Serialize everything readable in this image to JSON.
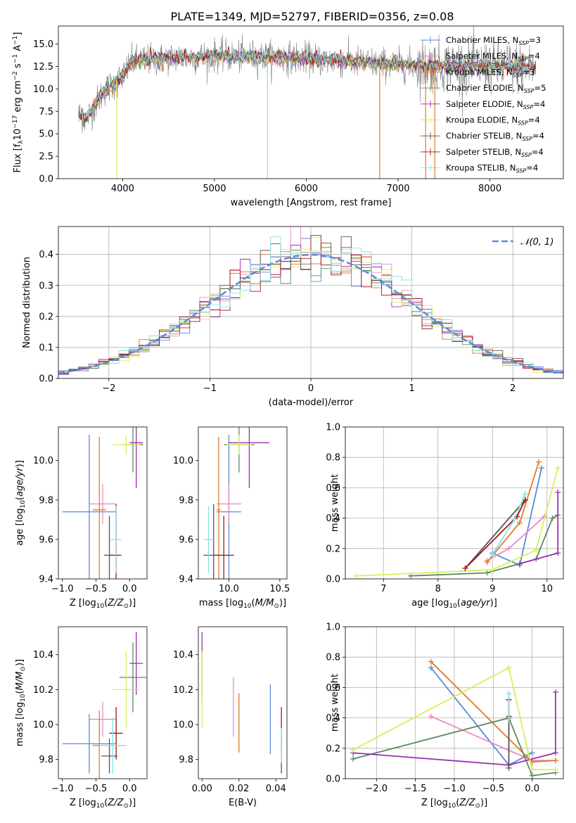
{
  "figure": {
    "title": "PLATE=1349, MJD=52797, FIBERID=0356, z=0.08",
    "colors": [
      "#5b8bd9",
      "#e98bbd",
      "#e07b2a",
      "#5b8a5b",
      "#9b30b0",
      "#d8ee5a",
      "#555555",
      "#a51414",
      "#88e0e6"
    ]
  },
  "chart_data": [
    {
      "id": "spectrum",
      "type": "line",
      "xlabel": "wavelength [Angstrom, rest frame]",
      "ylabel": "Flux [f_λ10^-17 erg cm^-2 s^-1 A^-1]",
      "xlim": [
        3300,
        8800
      ],
      "ylim": [
        0,
        17
      ],
      "xticks": [
        4000,
        5000,
        6000,
        7000,
        8000
      ],
      "yticks": [
        0.0,
        2.5,
        5.0,
        7.5,
        10.0,
        12.5,
        15.0
      ],
      "grid": false,
      "legend_position": "upper right",
      "legend": [
        {
          "label": "Chabrier MILES, N_SSP=3",
          "name": "Chabrier MILES",
          "n": "3",
          "color": "#5b8bd9"
        },
        {
          "label": "Salpeter MILES, N_SSP=4",
          "name": "Salpeter MILES",
          "n": "4",
          "color": "#e98bbd"
        },
        {
          "label": "Kroupa MILES, N_SSP=3",
          "name": "Kroupa MILES",
          "n": "3",
          "color": "#e07b2a"
        },
        {
          "label": "Chabrier ELODIE, N_SSP=5",
          "name": "Chabrier ELODIE",
          "n": "5",
          "color": "#5b8a5b"
        },
        {
          "label": "Salpeter ELODIE, N_SSP=4",
          "name": "Salpeter ELODIE",
          "n": "4",
          "color": "#9b30b0"
        },
        {
          "label": "Kroupa ELODIE, N_SSP=4",
          "name": "Kroupa ELODIE",
          "n": "4",
          "color": "#d8ee5a"
        },
        {
          "label": "Chabrier STELIB, N_SSP=4",
          "name": "Chabrier STELIB",
          "n": "4",
          "color": "#555555"
        },
        {
          "label": "Salpeter STELIB, N_SSP=4",
          "name": "Salpeter STELIB",
          "n": "4",
          "color": "#a51414"
        },
        {
          "label": "Kroupa STELIB, N_SSP=4",
          "name": "Kroupa STELIB",
          "n": "4",
          "color": "#88e0e6"
        }
      ],
      "continuum": {
        "x": [
          3520,
          3600,
          3700,
          3800,
          3900,
          4000,
          4100,
          4200,
          4400,
          4600,
          4800,
          5000,
          5200,
          5500,
          6000,
          6500,
          7000,
          7400,
          8000,
          8500
        ],
        "y": [
          7.2,
          6.6,
          8.2,
          9.8,
          10.5,
          11.4,
          13.0,
          13.2,
          13.3,
          13.5,
          13.5,
          13.7,
          13.6,
          13.6,
          13.4,
          13.0,
          12.7,
          12.6,
          12.5,
          12.4
        ]
      },
      "absorption_spikes": [
        3935,
        5577,
        6800,
        7300,
        7400
      ]
    },
    {
      "id": "residuals",
      "type": "histogram",
      "xlabel": "(data-model)/error",
      "ylabel": "Normed distribution",
      "xlim": [
        -2.5,
        2.5
      ],
      "ylim": [
        0,
        0.49
      ],
      "xticks": [
        -2,
        -1,
        0,
        1,
        2
      ],
      "yticks": [
        0.0,
        0.1,
        0.2,
        0.3,
        0.4
      ],
      "grid": true,
      "bin_width": 0.1,
      "bin_start": -2.5,
      "legend_position": "upper right",
      "reference_curve": {
        "label": "N(0,1)",
        "label_script": "𝒩(0, 1)",
        "mean": 0,
        "sigma": 1,
        "style": "dashed",
        "color": "#5b8bd9"
      }
    },
    {
      "id": "age-metallicity",
      "type": "errorbar",
      "xlabel": "Z [log10(Z/Z⊙)]",
      "ylabel": "age [log10(age/yr)]",
      "xlim": [
        -1.06,
        0.26
      ],
      "ylim": [
        9.4,
        10.17
      ],
      "xticks": [
        -1.0,
        -0.5,
        0.0
      ],
      "yticks": [
        9.4,
        9.6,
        9.8,
        10.0
      ],
      "points": [
        {
          "x": -0.6,
          "y": 9.74,
          "xerr": 0.4,
          "yerr": 0.39,
          "color": "#5b8bd9"
        },
        {
          "x": -0.4,
          "y": 9.78,
          "xerr": 0.2,
          "yerr": 0.1,
          "color": "#e98bbd"
        },
        {
          "x": -0.45,
          "y": 9.75,
          "xerr": 0.1,
          "yerr": 0.37,
          "color": "#e07b2a"
        },
        {
          "x": 0.05,
          "y": 10.08,
          "xerr": 0.15,
          "yerr": 0.14,
          "color": "#5b8a5b"
        },
        {
          "x": 0.1,
          "y": 10.09,
          "xerr": 0.1,
          "yerr": 0.23,
          "color": "#9b30b0"
        },
        {
          "x": -0.05,
          "y": 10.08,
          "xerr": 0.2,
          "yerr": 0.05,
          "color": "#d8ee5a"
        },
        {
          "x": -0.3,
          "y": 9.52,
          "xerr": 0.08,
          "yerr": 0.2,
          "color": "#555555"
        },
        {
          "x": -0.2,
          "y": 9.52,
          "xerr": 0.08,
          "yerr": 0.26,
          "color": "#a51414"
        },
        {
          "x": -0.2,
          "y": 9.6,
          "xerr": 0.08,
          "yerr": 0.17,
          "color": "#88e0e6"
        }
      ]
    },
    {
      "id": "age-mass",
      "type": "errorbar",
      "xlabel": "mass [log10(M/M⊙)]",
      "ylabel": "",
      "xlim": [
        9.7,
        10.57
      ],
      "ylim": [
        9.4,
        10.17
      ],
      "xticks": [
        10.0,
        10.5
      ],
      "yticks": [
        9.4,
        9.6,
        9.8,
        10.0
      ],
      "points": [
        {
          "x": 10.0,
          "y": 9.74,
          "xerr": 0.12,
          "yerr": 0.39,
          "color": "#5b8bd9"
        },
        {
          "x": 10.0,
          "y": 9.78,
          "xerr": 0.12,
          "yerr": 0.1,
          "color": "#e98bbd"
        },
        {
          "x": 9.9,
          "y": 9.75,
          "xerr": 0.02,
          "yerr": 0.37,
          "color": "#e07b2a"
        },
        {
          "x": 10.1,
          "y": 10.08,
          "xerr": 0.15,
          "yerr": 0.14,
          "color": "#5b8a5b"
        },
        {
          "x": 10.2,
          "y": 10.09,
          "xerr": 0.2,
          "yerr": 0.23,
          "color": "#9b30b0"
        },
        {
          "x": 10.1,
          "y": 10.08,
          "xerr": 0.12,
          "yerr": 0.05,
          "color": "#d8ee5a"
        },
        {
          "x": 9.85,
          "y": 9.52,
          "xerr": 0.1,
          "yerr": 0.26,
          "color": "#555555"
        },
        {
          "x": 9.95,
          "y": 9.52,
          "xerr": 0.1,
          "yerr": 0.2,
          "color": "#a51414"
        },
        {
          "x": 9.8,
          "y": 9.6,
          "xerr": 0.05,
          "yerr": 0.17,
          "color": "#88e0e6"
        }
      ]
    },
    {
      "id": "mass-weight-age",
      "type": "line",
      "xlabel": "age [log10(age/yr)]",
      "ylabel": "mass weight",
      "xlim": [
        6.3,
        10.3
      ],
      "ylim": [
        0,
        1
      ],
      "xticks": [
        7,
        8,
        9,
        10
      ],
      "yticks": [
        0.0,
        0.2,
        0.4,
        0.6,
        0.8,
        1.0
      ],
      "grid": true,
      "series": [
        {
          "color": "#5b8bd9",
          "x": [
            9.0,
            9.5,
            9.9
          ],
          "y": [
            0.17,
            0.09,
            0.73
          ]
        },
        {
          "color": "#e98bbd",
          "x": [
            8.9,
            9.3,
            9.95
          ],
          "y": [
            0.12,
            0.2,
            0.41
          ]
        },
        {
          "color": "#e07b2a",
          "x": [
            8.9,
            9.5,
            9.85
          ],
          "y": [
            0.11,
            0.37,
            0.77
          ]
        },
        {
          "color": "#5b8a5b",
          "x": [
            7.5,
            8.9,
            9.8,
            10.1,
            10.2
          ],
          "y": [
            0.02,
            0.04,
            0.13,
            0.4,
            0.42
          ]
        },
        {
          "color": "#9b30b0",
          "x": [
            9.5,
            10.2,
            10.2
          ],
          "y": [
            0.1,
            0.17,
            0.57
          ]
        },
        {
          "color": "#d8ee5a",
          "x": [
            6.5,
            9.0,
            9.8,
            10.2
          ],
          "y": [
            0.02,
            0.06,
            0.19,
            0.73
          ]
        },
        {
          "color": "#555555",
          "x": [
            8.5,
            9.6
          ],
          "y": [
            0.07,
            0.52
          ]
        },
        {
          "color": "#a51414",
          "x": [
            8.5,
            9.45,
            9.6
          ],
          "y": [
            0.07,
            0.41,
            0.52
          ]
        },
        {
          "color": "#88e0e6",
          "x": [
            9.0,
            9.4,
            9.6
          ],
          "y": [
            0.16,
            0.39,
            0.56
          ]
        }
      ]
    },
    {
      "id": "mass-metallicity",
      "type": "errorbar",
      "xlabel": "Z [log10(Z/Z⊙)]",
      "ylabel": "mass [log10(M/M⊙)]",
      "xlim": [
        -1.06,
        0.26
      ],
      "ylim": [
        9.69,
        10.56
      ],
      "xticks": [
        -1.0,
        -0.5,
        0.0
      ],
      "yticks": [
        9.8,
        10.0,
        10.2,
        10.4
      ],
      "points": [
        {
          "x": -0.6,
          "y": 9.89,
          "xerr": 0.4,
          "yerr": 0.17,
          "color": "#5b8bd9"
        },
        {
          "x": -0.4,
          "y": 10.03,
          "xerr": 0.2,
          "yerr": 0.1,
          "color": "#e98bbd"
        },
        {
          "x": -0.45,
          "y": 9.88,
          "xerr": 0.1,
          "yerr": 0.2,
          "color": "#e07b2a"
        },
        {
          "x": 0.05,
          "y": 10.27,
          "xerr": 0.2,
          "yerr": 0.2,
          "color": "#5b8a5b"
        },
        {
          "x": 0.1,
          "y": 10.35,
          "xerr": 0.1,
          "yerr": 0.18,
          "color": "#9b30b0"
        },
        {
          "x": -0.05,
          "y": 10.2,
          "xerr": 0.2,
          "yerr": 0.22,
          "color": "#d8ee5a"
        },
        {
          "x": -0.3,
          "y": 9.82,
          "xerr": 0.12,
          "yerr": 0.1,
          "color": "#555555"
        },
        {
          "x": -0.2,
          "y": 9.95,
          "xerr": 0.1,
          "yerr": 0.15,
          "color": "#a51414"
        },
        {
          "x": -0.25,
          "y": 9.88,
          "xerr": 0.2,
          "yerr": 0.16,
          "color": "#88e0e6"
        }
      ]
    },
    {
      "id": "mass-extinction",
      "type": "errorbar",
      "xlabel": "E(B-V)",
      "ylabel": "",
      "xlim": [
        -0.002,
        0.046
      ],
      "ylim": [
        9.69,
        10.56
      ],
      "xticks": [
        0.0,
        0.02,
        0.04
      ],
      "yticks": [
        9.8,
        10.0,
        10.2,
        10.4
      ],
      "points": [
        {
          "x": 0.037,
          "y": 10.03,
          "yerr": 0.2,
          "color": "#5b8bd9"
        },
        {
          "x": 0.017,
          "y": 10.1,
          "yerr": 0.17,
          "color": "#e98bbd"
        },
        {
          "x": 0.02,
          "y": 10.01,
          "yerr": 0.17,
          "color": "#e07b2a"
        },
        {
          "x": 0.0,
          "y": 10.27,
          "yerr": 0.14,
          "color": "#5b8a5b"
        },
        {
          "x": 0.0,
          "y": 10.45,
          "yerr": 0.08,
          "color": "#9b30b0"
        },
        {
          "x": 0.0,
          "y": 10.2,
          "yerr": 0.22,
          "color": "#d8ee5a"
        },
        {
          "x": 0.043,
          "y": 9.82,
          "yerr": 0.1,
          "color": "#555555"
        },
        {
          "x": 0.043,
          "y": 9.98,
          "yerr": 0.12,
          "color": "#a51414"
        },
        {
          "x": 0.043,
          "y": 9.88,
          "yerr": 0.1,
          "color": "#88e0e6"
        }
      ]
    },
    {
      "id": "mass-weight-metallicity",
      "type": "line",
      "xlabel": "Z [log10(Z/Z⊙)]",
      "ylabel": "mass weight",
      "xlim": [
        -2.4,
        0.4
      ],
      "ylim": [
        0,
        1
      ],
      "xticks": [
        -2.0,
        -1.5,
        -1.0,
        -0.5,
        0.0
      ],
      "yticks": [
        0.0,
        0.2,
        0.4,
        0.6,
        0.8,
        1.0
      ],
      "grid": true,
      "series": [
        {
          "color": "#5b8bd9",
          "x": [
            -1.3,
            -0.3,
            0.0
          ],
          "y": [
            0.73,
            0.09,
            0.17
          ]
        },
        {
          "color": "#e98bbd",
          "x": [
            -1.3,
            0.0,
            0.3
          ],
          "y": [
            0.41,
            0.12,
            0.12
          ]
        },
        {
          "color": "#e07b2a",
          "x": [
            -1.3,
            0.0,
            0.3
          ],
          "y": [
            0.77,
            0.11,
            0.12
          ]
        },
        {
          "color": "#5b8a5b",
          "x": [
            -2.3,
            -0.3,
            0.0,
            0.3
          ],
          "y": [
            0.13,
            0.4,
            0.02,
            0.04
          ]
        },
        {
          "color": "#9b30b0",
          "x": [
            -2.3,
            -0.3,
            0.3,
            0.3
          ],
          "y": [
            0.17,
            0.09,
            0.17,
            0.57
          ]
        },
        {
          "color": "#d8ee5a",
          "x": [
            -2.3,
            -0.3,
            0.0,
            0.3
          ],
          "y": [
            0.19,
            0.73,
            0.06,
            0.06
          ]
        },
        {
          "color": "#555555",
          "x": [
            -0.3,
            -0.3
          ],
          "y": [
            0.52,
            0.07
          ]
        },
        {
          "color": "#a51414",
          "x": [
            -0.3,
            -0.3
          ],
          "y": [
            0.52,
            0.41
          ]
        },
        {
          "color": "#88e0e6",
          "x": [
            -0.3,
            -0.3
          ],
          "y": [
            0.56,
            0.39
          ]
        }
      ]
    }
  ]
}
